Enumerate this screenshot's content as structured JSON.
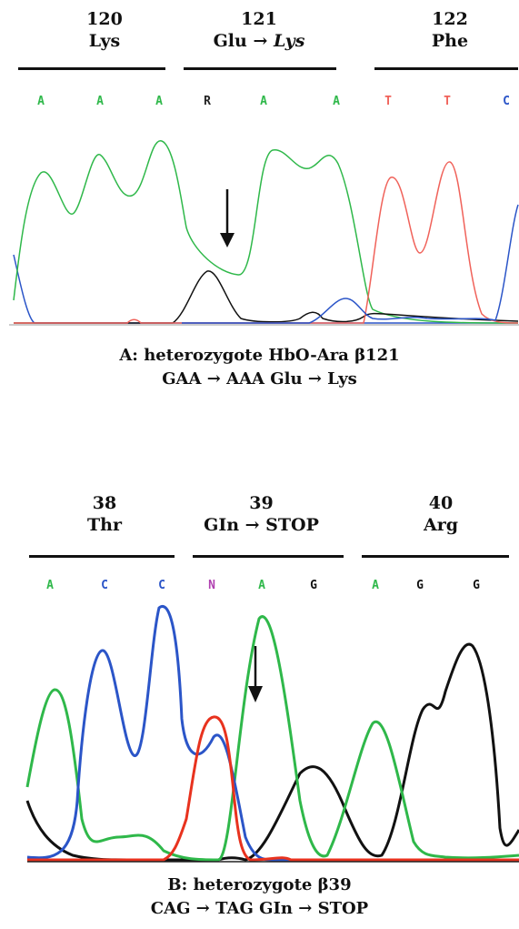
{
  "panel_a": {
    "codons": [
      {
        "number": "120",
        "amino_acid": "Lys"
      },
      {
        "number": "121",
        "amino_acid_from": "Glu",
        "arrow": "→",
        "amino_acid_to": "Lys"
      },
      {
        "number": "122",
        "amino_acid": "Phe"
      }
    ],
    "bases": [
      "A",
      "A",
      "A",
      "R",
      "A",
      "A",
      "T",
      "T",
      "C"
    ],
    "caption_line1": "A: heterozygote HbO-Ara β121",
    "caption_line2": "GAA → AAA Glu → Lys"
  },
  "panel_b": {
    "codons": [
      {
        "number": "38",
        "amino_acid": "Thr"
      },
      {
        "number": "39",
        "amino_acid": "GIn → STOP"
      },
      {
        "number": "40",
        "amino_acid": "Arg"
      }
    ],
    "bases": [
      "A",
      "C",
      "C",
      "N",
      "A",
      "G",
      "A",
      "G",
      "G"
    ],
    "caption_line1": "B: heterozygote β39",
    "caption_line2": "CAG → TAG GIn → STOP"
  },
  "base_colors": {
    "A": "#2fb84a",
    "C": "#2b55c8",
    "G": "#111111",
    "T": "#f0625a",
    "R": "#222222",
    "N": "#b040b0"
  }
}
